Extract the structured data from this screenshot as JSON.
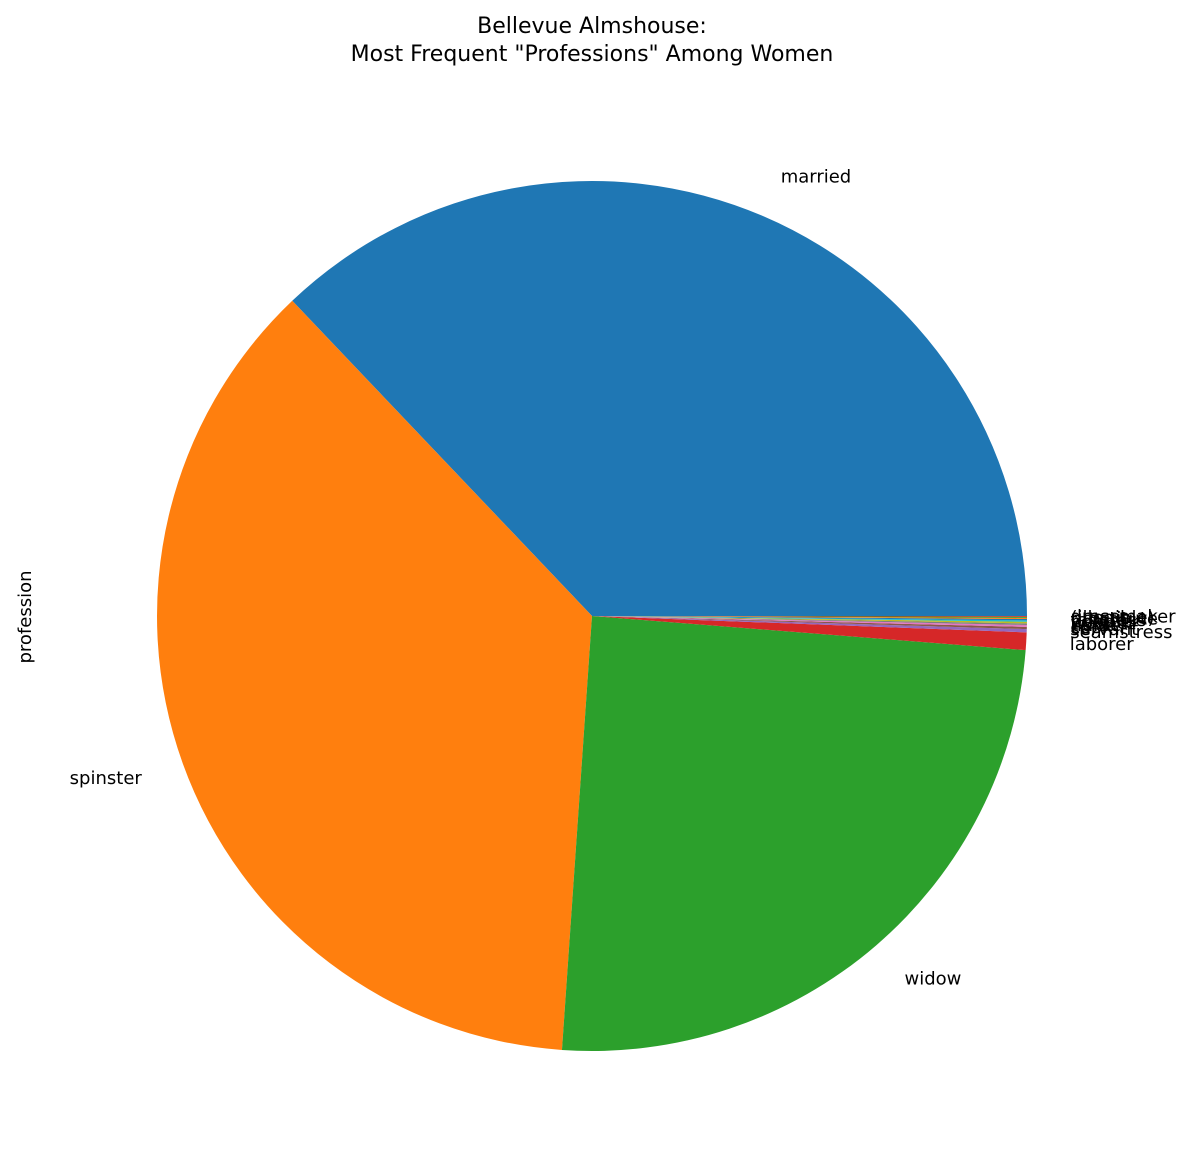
{
  "chart_data": {
    "type": "pie",
    "title": [
      "Bellevue Almshouse:",
      "Most Frequent \"Professions\" Among Women"
    ],
    "ylabel": "profession",
    "start_angle_deg": 0,
    "direction": "counterclockwise",
    "slices": [
      {
        "label": "married",
        "value": 37.1,
        "color": "#1f77b4"
      },
      {
        "label": "spinster",
        "value": 36.8,
        "color": "#ff7f0e"
      },
      {
        "label": "widow",
        "value": 24.85,
        "color": "#2ca02c"
      },
      {
        "label": "laborer",
        "value": 0.65,
        "color": "#d62728"
      },
      {
        "label": "seamstress",
        "value": 0.12,
        "color": "#9467bd"
      },
      {
        "label": "servant",
        "value": 0.08,
        "color": "#8c564b"
      },
      {
        "label": "cook",
        "value": 0.07,
        "color": "#e377c2"
      },
      {
        "label": "nurse",
        "value": 0.06,
        "color": "#7f7f7f"
      },
      {
        "label": "washer",
        "value": 0.06,
        "color": "#bcbd22"
      },
      {
        "label": "peddler",
        "value": 0.05,
        "color": "#17becf"
      },
      {
        "label": "tailoress",
        "value": 0.05,
        "color": "#1f77b4"
      },
      {
        "label": "prostitute",
        "value": 0.04,
        "color": "#ff7f0e"
      },
      {
        "label": "(illegible)",
        "value": 0.04,
        "color": "#2ca02c"
      },
      {
        "label": "dressmaker",
        "value": 0.03,
        "color": "#d62728"
      }
    ]
  }
}
